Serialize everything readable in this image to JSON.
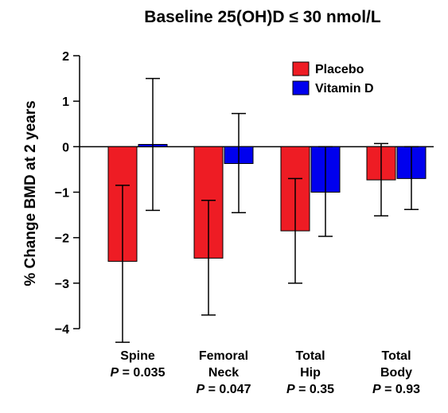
{
  "chart_data": {
    "type": "bar",
    "title": "Baseline 25(OH)D ≤ 30 nmol/L",
    "ylabel": "% Change BMD at 2 years",
    "xlabel": "",
    "ylim": [
      -4,
      2
    ],
    "yticks": [
      2,
      1,
      0,
      -1,
      -2,
      -3,
      -4
    ],
    "ytick_labels": [
      "2",
      "1",
      "0",
      "−1",
      "−2",
      "−3",
      "−4"
    ],
    "grid": false,
    "legend_position": "top-right",
    "categories": [
      {
        "lines": [
          "Spine"
        ],
        "p_prefix": "P",
        "p_value": " = 0.035"
      },
      {
        "lines": [
          "Femoral",
          "Neck"
        ],
        "p_prefix": "P",
        "p_value": " = 0.047"
      },
      {
        "lines": [
          "Total",
          "Hip"
        ],
        "p_prefix": "P",
        "p_value": " = 0.35"
      },
      {
        "lines": [
          "Total",
          "Body"
        ],
        "p_prefix": "P",
        "p_value": " = 0.93"
      }
    ],
    "series": [
      {
        "name": "Placebo",
        "color": "#ee1c24",
        "values": [
          -2.52,
          -2.45,
          -1.85,
          -0.73
        ],
        "error_low": [
          -4.3,
          -3.7,
          -3.0,
          -1.52
        ],
        "error_high": [
          -0.85,
          -1.18,
          -0.7,
          0.07
        ]
      },
      {
        "name": "Vitamin D",
        "color": "#0000ee",
        "values": [
          0.05,
          -0.37,
          -1.0,
          -0.7
        ],
        "error_low": [
          -1.4,
          -1.45,
          -1.97,
          -1.38
        ],
        "error_high": [
          1.5,
          0.73,
          0.0,
          0.0
        ]
      }
    ]
  }
}
